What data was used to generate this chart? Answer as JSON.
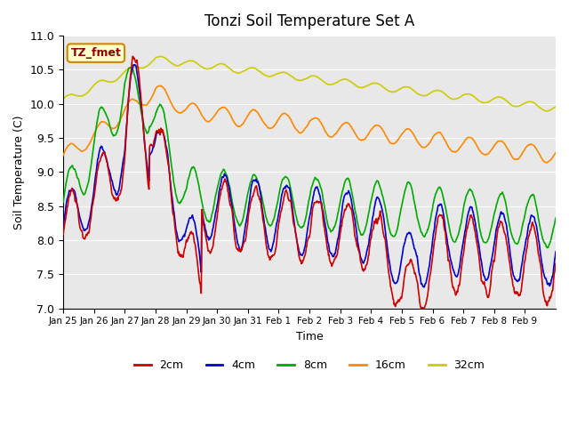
{
  "title": "Tonzi Soil Temperature Set A",
  "xlabel": "Time",
  "ylabel": "Soil Temperature (C)",
  "annotation": "TZ_fmet",
  "ylim": [
    7.0,
    11.0
  ],
  "yticks": [
    7.0,
    7.5,
    8.0,
    8.5,
    9.0,
    9.5,
    10.0,
    10.5,
    11.0
  ],
  "xtick_labels": [
    "Jan 25",
    "Jan 26",
    "Jan 27",
    "Jan 28",
    "Jan 29",
    "Jan 30",
    "Jan 31",
    "Feb 1",
    "Feb 2",
    "Feb 3",
    "Feb 4",
    "Feb 5",
    "Feb 6",
    "Feb 7",
    "Feb 8",
    "Feb 9"
  ],
  "colors": {
    "2cm": "#cc0000",
    "4cm": "#0000cc",
    "8cm": "#00aa00",
    "16cm": "#ff8800",
    "32cm": "#cccc00"
  },
  "legend_labels": [
    "2cm",
    "4cm",
    "8cm",
    "16cm",
    "32cm"
  ],
  "plot_bg_color": "#e8e8e8",
  "grid_color": "#ffffff",
  "annotation_fg": "#8b0000",
  "annotation_bg": "#ffffcc",
  "annotation_border": "#cc8800"
}
